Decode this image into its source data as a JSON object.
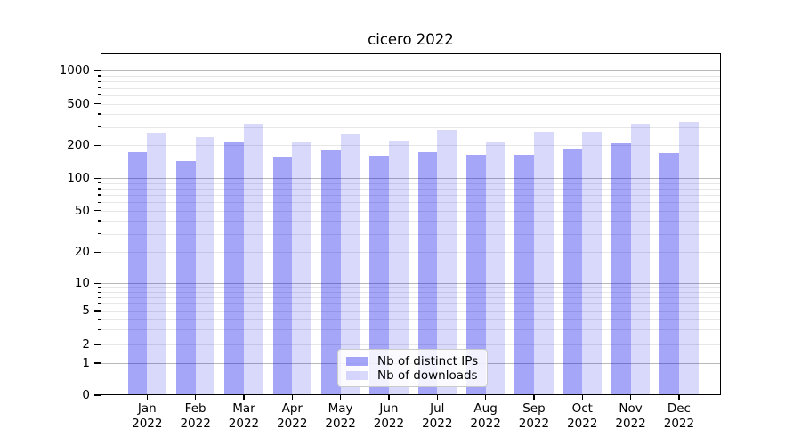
{
  "figure": {
    "title": "cicero 2022"
  },
  "chart_data": {
    "type": "bar",
    "title": "cicero 2022",
    "categories": [
      "Jan 2022",
      "Feb 2022",
      "Mar 2022",
      "Apr 2022",
      "May 2022",
      "Jun 2022",
      "Jul 2022",
      "Aug 2022",
      "Sep 2022",
      "Oct 2022",
      "Nov 2022",
      "Dec 2022"
    ],
    "series": [
      {
        "name": "Nb of distinct IPs",
        "color": "#0000ee",
        "opacity": 0.35,
        "values": [
          172,
          145,
          215,
          157,
          182,
          160,
          173,
          164,
          163,
          185,
          209,
          170
        ]
      },
      {
        "name": "Nb of downloads",
        "color": "#0000ee",
        "opacity": 0.15,
        "values": [
          266,
          238,
          325,
          219,
          253,
          220,
          283,
          219,
          272,
          272,
          321,
          335
        ]
      }
    ],
    "yscale": "symlog",
    "yticks": [
      0,
      1,
      2,
      5,
      10,
      20,
      50,
      100,
      200,
      500,
      1000
    ],
    "ylim": [
      0,
      1470
    ],
    "grid": true,
    "legend": {
      "position": "lower center",
      "entries": [
        "Nb of distinct IPs",
        "Nb of downloads"
      ]
    }
  },
  "colors": {
    "grid_major": "#b9b9b9",
    "grid_minor": "#e7e7e7",
    "spine": "#000000",
    "background": "#ffffff"
  }
}
